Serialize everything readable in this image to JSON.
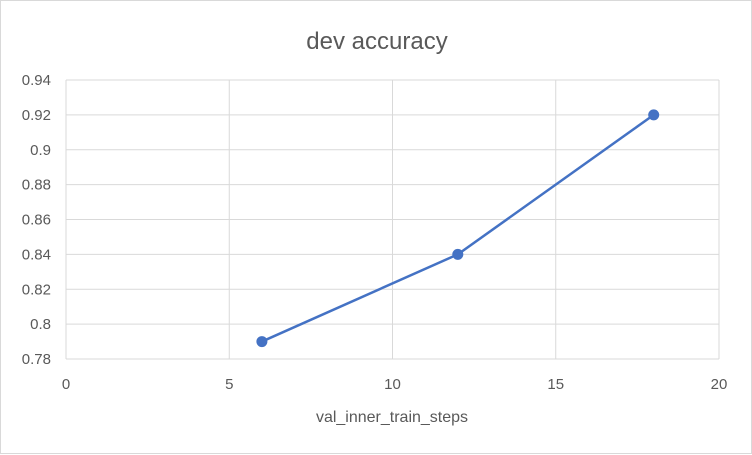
{
  "chart_data": {
    "type": "scatter",
    "title": "dev accuracy",
    "xlabel": "val_inner_train_steps",
    "ylabel": "",
    "xlim": [
      0,
      20
    ],
    "ylim": [
      0.78,
      0.94
    ],
    "x_ticks": [
      "0",
      "5",
      "10",
      "15",
      "20"
    ],
    "y_ticks": [
      "0.78",
      "0.8",
      "0.82",
      "0.84",
      "0.86",
      "0.88",
      "0.9",
      "0.92",
      "0.94"
    ],
    "grid": true,
    "legend": "none",
    "series": [
      {
        "x": [
          6,
          12,
          18
        ],
        "y": [
          0.79,
          0.84,
          0.92
        ],
        "color": "#4472c4",
        "lines": true,
        "markers": true
      }
    ]
  }
}
